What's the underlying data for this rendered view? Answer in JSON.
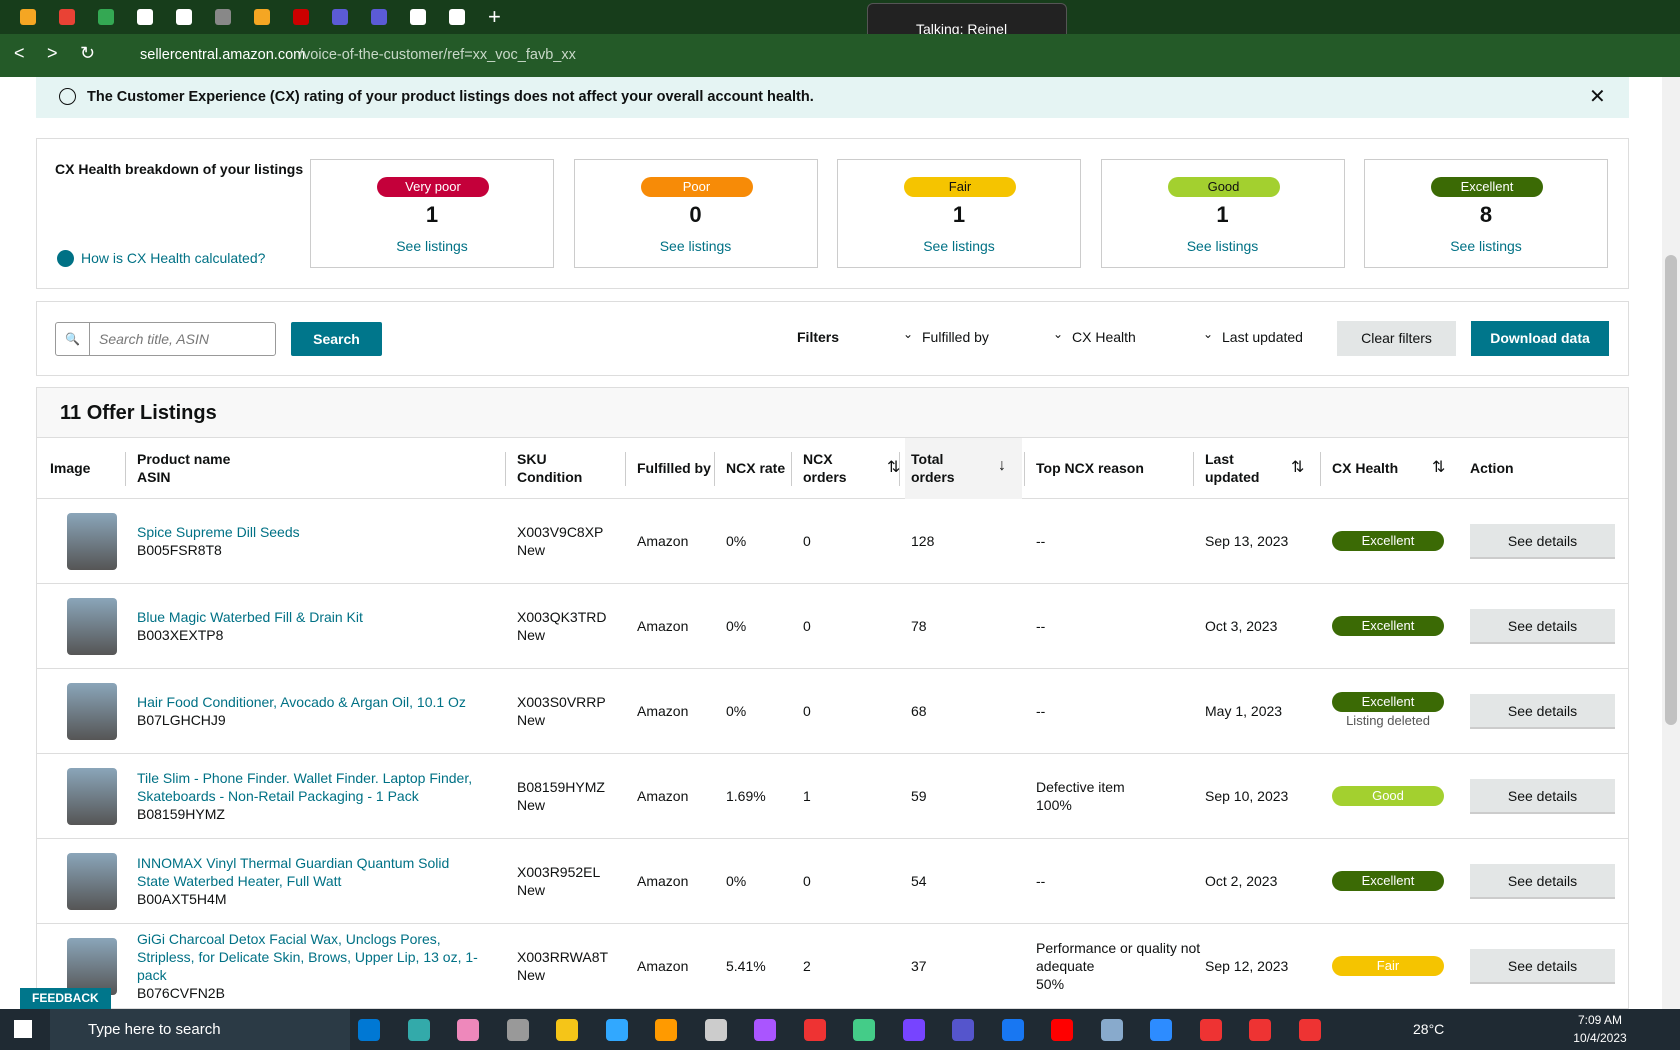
{
  "browser": {
    "url_host": "sellercentral.amazon.com",
    "url_path": "/voice-of-the-customer/ref=xx_voc_favb_xx",
    "toast": "Talking: Reinel"
  },
  "banner": {
    "text": "The Customer Experience (CX) rating of your product listings does not affect your overall account health."
  },
  "cx_health": {
    "title": "CX Health breakdown of your listings",
    "help_link": "How is CX Health calculated?",
    "cards": [
      {
        "label": "Very poor",
        "count": 1,
        "link": "See listings",
        "color": "#c4003a"
      },
      {
        "label": "Poor",
        "count": 0,
        "link": "See listings",
        "color": "#f78b07"
      },
      {
        "label": "Fair",
        "count": 1,
        "link": "See listings",
        "color": "#f5c400"
      },
      {
        "label": "Good",
        "count": 1,
        "link": "See listings",
        "color": "#a3d02f"
      },
      {
        "label": "Excellent",
        "count": 8,
        "link": "See listings",
        "color": "#3b6a05"
      }
    ]
  },
  "toolbar": {
    "search_placeholder": "Search title, ASIN",
    "search_button": "Search",
    "filters_label": "Filters",
    "filters": [
      "Fulfilled by",
      "CX Health",
      "Last updated"
    ],
    "clear": "Clear filters",
    "download": "Download data"
  },
  "table": {
    "title": "11 Offer Listings",
    "headers": [
      [
        "Image"
      ],
      [
        "Product name",
        "ASIN"
      ],
      [
        "SKU",
        "Condition"
      ],
      [
        "Fulfilled by"
      ],
      [
        "NCX rate"
      ],
      [
        "NCX",
        "orders"
      ],
      [
        "Total",
        "orders"
      ],
      [
        "Top NCX reason"
      ],
      [
        "Last",
        "updated"
      ],
      [
        "CX Health"
      ],
      [
        "Action"
      ]
    ],
    "rows": [
      {
        "name": "Spice Supreme Dill Seeds",
        "asin": "B005FSR8T8",
        "sku": "X003V9C8XP",
        "condition": "New",
        "fulfilled_by": "Amazon",
        "ncx_rate": "0%",
        "ncx_orders": 0,
        "total_orders": 128,
        "top_ncx_reason": [
          "--"
        ],
        "last_updated": "Sep 13, 2023",
        "cx_health": "Excellent",
        "cx_color": "#3b6a05",
        "action": "See details"
      },
      {
        "name": "Blue Magic Waterbed Fill & Drain Kit",
        "asin": "B003XEXTP8",
        "sku": "X003QK3TRD",
        "condition": "New",
        "fulfilled_by": "Amazon",
        "ncx_rate": "0%",
        "ncx_orders": 0,
        "total_orders": 78,
        "top_ncx_reason": [
          "--"
        ],
        "last_updated": "Oct 3, 2023",
        "cx_health": "Excellent",
        "cx_color": "#3b6a05",
        "action": "See details"
      },
      {
        "name": "Hair Food Conditioner, Avocado & Argan Oil, 10.1 Oz",
        "asin": "B07LGHCHJ9",
        "sku": "X003S0VRRP",
        "condition": "New",
        "fulfilled_by": "Amazon",
        "ncx_rate": "0%",
        "ncx_orders": 0,
        "total_orders": 68,
        "top_ncx_reason": [
          "--"
        ],
        "last_updated": "May 1, 2023",
        "cx_health": "Excellent",
        "cx_color": "#3b6a05",
        "note": "Listing deleted",
        "action": "See details"
      },
      {
        "name": "Tile Slim - Phone Finder. Wallet Finder. Laptop Finder, Skateboards - Non-Retail Packaging - 1 Pack",
        "asin": "B08159HYMZ",
        "sku": "B08159HYMZ",
        "condition": "New",
        "fulfilled_by": "Amazon",
        "ncx_rate": "1.69%",
        "ncx_orders": 1,
        "total_orders": 59,
        "top_ncx_reason": [
          "Defective item",
          "100%"
        ],
        "last_updated": "Sep 10, 2023",
        "cx_health": "Good",
        "cx_color": "#a3d02f",
        "action": "See details"
      },
      {
        "name": "INNOMAX Vinyl Thermal Guardian Quantum Solid State Waterbed Heater, Full Watt",
        "asin": "B00AXT5H4M",
        "sku": "X003R952EL",
        "condition": "New",
        "fulfilled_by": "Amazon",
        "ncx_rate": "0%",
        "ncx_orders": 0,
        "total_orders": 54,
        "top_ncx_reason": [
          "--"
        ],
        "last_updated": "Oct 2, 2023",
        "cx_health": "Excellent",
        "cx_color": "#3b6a05",
        "action": "See details"
      },
      {
        "name": "GiGi Charcoal Detox Facial Wax, Unclogs Pores, Stripless, for Delicate Skin, Brows, Upper Lip, 13 oz, 1-pack",
        "asin": "B076CVFN2B",
        "sku": "X003RRWA8T",
        "condition": "New",
        "fulfilled_by": "Amazon",
        "ncx_rate": "5.41%",
        "ncx_orders": 2,
        "total_orders": 37,
        "top_ncx_reason": [
          "Performance or quality not adequate",
          "50%"
        ],
        "last_updated": "Sep 12, 2023",
        "cx_health": "Fair",
        "cx_color": "#f5c400",
        "action": "See details"
      }
    ]
  },
  "feedback": "FEEDBACK",
  "taskbar": {
    "search": "Type here to search",
    "temperature": "28°C",
    "time": "7:09 AM",
    "date": "10/4/2023"
  }
}
